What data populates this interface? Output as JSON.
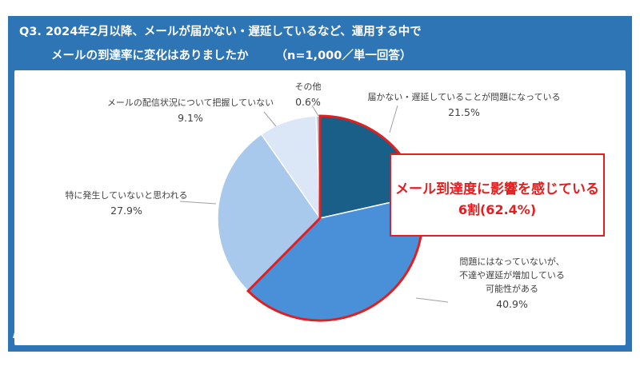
{
  "header": {
    "line1": "Q3. 2024年2月以降、メールが届かない・遅延しているなど、運用する中で",
    "line2": "メールの到達率に変化はありましたか",
    "note": "（n=1,000／単一回答）"
  },
  "chart_data": {
    "type": "pie",
    "title": "",
    "start_angle_deg": 0,
    "direction": "clockwise",
    "slices": [
      {
        "label": "届かない・遅延していることが問題になっている",
        "value": 21.5,
        "display": "21.5%",
        "color": "#1a5f87"
      },
      {
        "label": "問題にはなっていないが、不達や遅延が増加している可能性がある",
        "label_lines": [
          "問題にはなっていないが、",
          "不達や遅延が増加している",
          "可能性がある"
        ],
        "value": 40.9,
        "display": "40.9%",
        "color": "#4a90d9"
      },
      {
        "label": "特に発生していないと思われる",
        "value": 27.9,
        "display": "27.9%",
        "color": "#a8c8ec"
      },
      {
        "label": "メールの配信状況について把握していない",
        "value": 9.1,
        "display": "9.1%",
        "color": "#dbe7f6"
      },
      {
        "label": "その他",
        "value": 0.6,
        "display": "0.6%",
        "color": "#b8cbe0"
      }
    ],
    "highlight": {
      "slices": [
        0,
        1
      ],
      "color": "#e02020",
      "line1": "メール到達度に影響を感じている",
      "line2": "6割(62.4%)"
    }
  },
  "logo": {
    "text": "ベアメール",
    "color": "#1f5e99"
  }
}
